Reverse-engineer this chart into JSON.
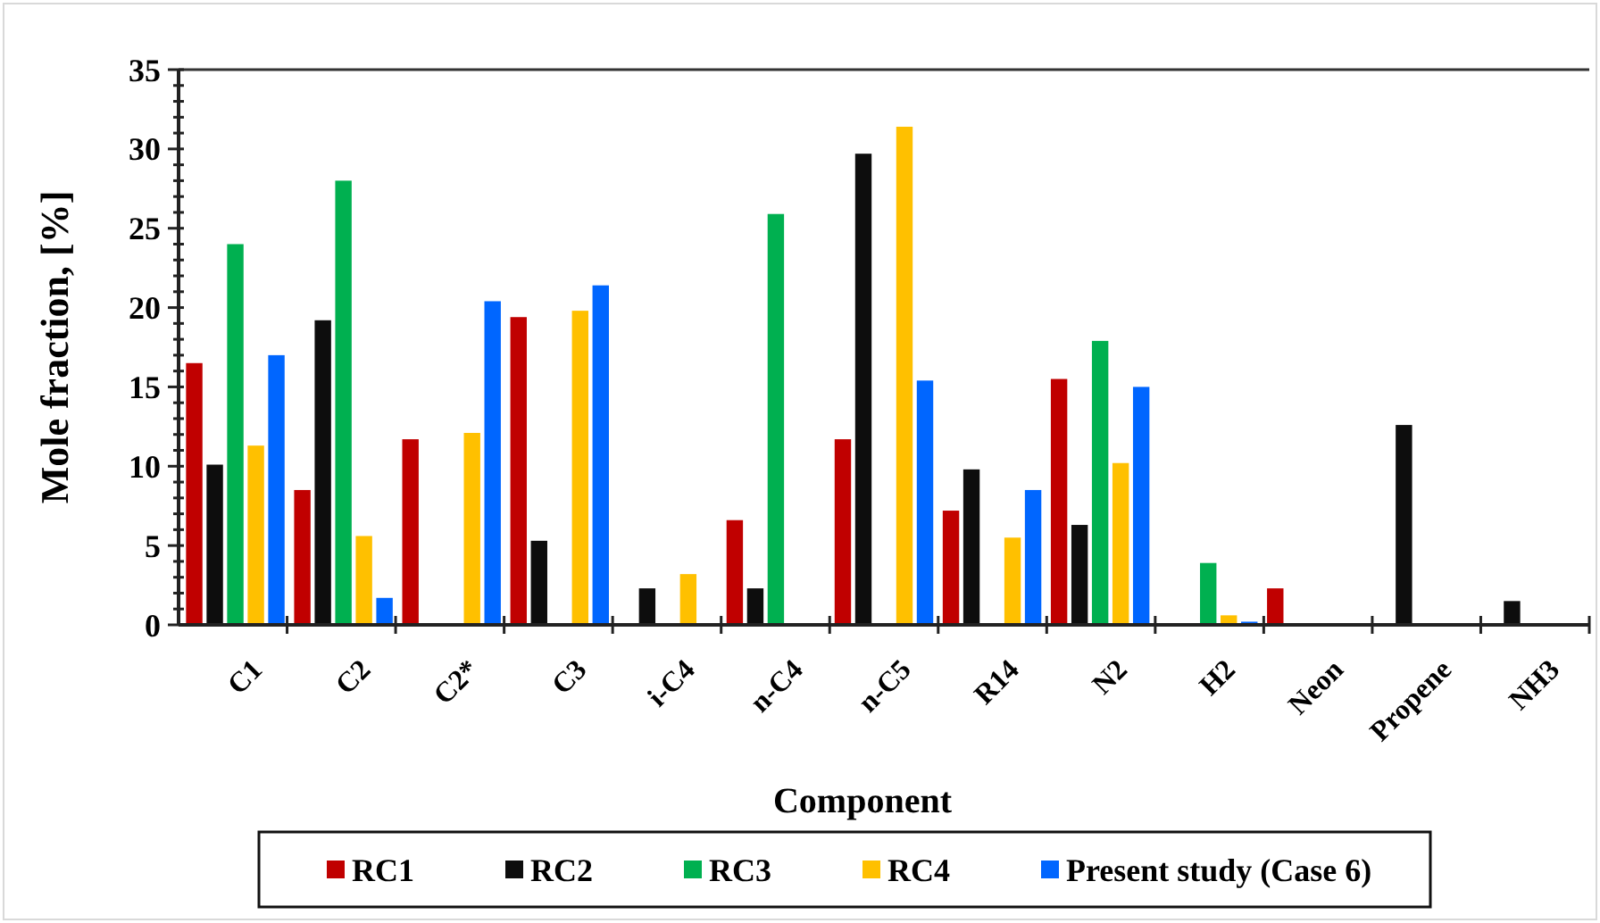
{
  "chart_data": {
    "type": "bar",
    "xlabel": "Component",
    "ylabel": "Mole fraction, [%]",
    "categories": [
      "C1",
      "C2",
      "C2*",
      "C3",
      "i-C4",
      "n-C4",
      "n-C5",
      "R14",
      "N2",
      "H2",
      "Neon",
      "Propene",
      "NH3"
    ],
    "series": [
      {
        "name": "RC1",
        "color": "#c00000",
        "values": [
          16.5,
          8.5,
          11.7,
          19.4,
          null,
          6.6,
          11.7,
          7.2,
          15.5,
          null,
          2.3,
          null,
          null
        ]
      },
      {
        "name": "RC2",
        "color": "#0d0d0d",
        "values": [
          10.1,
          19.2,
          null,
          5.3,
          2.3,
          2.3,
          29.7,
          9.8,
          6.3,
          null,
          null,
          12.6,
          1.5
        ]
      },
      {
        "name": "RC3",
        "color": "#00b050",
        "values": [
          24,
          28,
          null,
          null,
          null,
          25.9,
          null,
          null,
          17.9,
          3.9,
          null,
          null,
          null
        ]
      },
      {
        "name": "RC4",
        "color": "#ffc000",
        "values": [
          11.3,
          5.6,
          12.1,
          19.8,
          3.2,
          null,
          31.4,
          5.5,
          10.2,
          0.6,
          null,
          null,
          null
        ]
      },
      {
        "name": "Present study (Case 6)",
        "color": "#0066ff",
        "values": [
          17,
          1.7,
          20.4,
          21.4,
          null,
          null,
          15.4,
          8.5,
          15,
          0.2,
          null,
          null,
          null
        ]
      }
    ],
    "ylim": [
      0,
      35
    ],
    "yticks": [
      0,
      {
        "value": 1,
        "label": null
      },
      {
        "value": 2,
        "label": null
      },
      {
        "value": 3,
        "label": null
      },
      {
        "value": 4,
        "label": null
      },
      5,
      {
        "value": 6,
        "label": null
      },
      {
        "value": 7,
        "label": null
      },
      {
        "value": 8,
        "label": null
      },
      {
        "value": 9,
        "label": null
      },
      10,
      {
        "value": 11,
        "label": null
      },
      {
        "value": 12,
        "label": null
      },
      {
        "value": 13,
        "label": null
      },
      {
        "value": 14,
        "label": null
      },
      15,
      {
        "value": 16,
        "label": null
      },
      {
        "value": 17,
        "label": null
      },
      {
        "value": 18,
        "label": null
      },
      {
        "value": 19,
        "label": null
      },
      20,
      {
        "value": 21,
        "label": null
      },
      {
        "value": 22,
        "label": null
      },
      {
        "value": 23,
        "label": null
      },
      {
        "value": 24,
        "label": null
      },
      25,
      {
        "value": 26,
        "label": null
      },
      {
        "value": 27,
        "label": null
      },
      {
        "value": 28,
        "label": null
      },
      {
        "value": 29,
        "label": null
      },
      30,
      {
        "value": 31,
        "label": null
      },
      {
        "value": 32,
        "label": null
      },
      {
        "value": 33,
        "label": null
      },
      {
        "value": 34,
        "label": null
      },
      35
    ],
    "grid": false,
    "legend": "bottom"
  }
}
